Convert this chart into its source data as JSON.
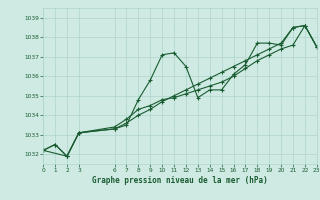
{
  "title": "Graphe pression niveau de la mer (hPa)",
  "bg_color": "#ceeae2",
  "grid_color": "#aed4cc",
  "line_color": "#1a5c32",
  "xlim": [
    0,
    23
  ],
  "ylim": [
    1031.5,
    1039.5
  ],
  "xticks": [
    0,
    1,
    2,
    3,
    6,
    7,
    8,
    9,
    10,
    11,
    12,
    13,
    14,
    15,
    16,
    17,
    18,
    19,
    20,
    21,
    22,
    23
  ],
  "yticks": [
    1032,
    1033,
    1034,
    1035,
    1036,
    1037,
    1038,
    1039
  ],
  "series1": [
    [
      0,
      1032.2
    ],
    [
      1,
      1032.5
    ],
    [
      2,
      1031.9
    ],
    [
      3,
      1033.1
    ],
    [
      6,
      1033.3
    ],
    [
      7,
      1033.5
    ],
    [
      8,
      1034.8
    ],
    [
      9,
      1035.8
    ],
    [
      10,
      1037.1
    ],
    [
      11,
      1037.2
    ],
    [
      12,
      1036.5
    ],
    [
      13,
      1034.9
    ],
    [
      14,
      1035.3
    ],
    [
      15,
      1035.3
    ],
    [
      16,
      1036.1
    ],
    [
      17,
      1036.6
    ],
    [
      18,
      1037.7
    ],
    [
      19,
      1037.7
    ],
    [
      20,
      1037.6
    ],
    [
      21,
      1038.5
    ],
    [
      22,
      1038.6
    ],
    [
      23,
      1037.5
    ]
  ],
  "series2": [
    [
      0,
      1032.2
    ],
    [
      1,
      1032.5
    ],
    [
      2,
      1031.9
    ],
    [
      3,
      1033.1
    ],
    [
      6,
      1033.4
    ],
    [
      7,
      1033.8
    ],
    [
      8,
      1034.3
    ],
    [
      9,
      1034.5
    ],
    [
      10,
      1034.8
    ],
    [
      11,
      1034.9
    ],
    [
      12,
      1035.1
    ],
    [
      13,
      1035.3
    ],
    [
      14,
      1035.5
    ],
    [
      15,
      1035.7
    ],
    [
      16,
      1036.0
    ],
    [
      17,
      1036.4
    ],
    [
      18,
      1036.8
    ],
    [
      19,
      1037.1
    ],
    [
      20,
      1037.4
    ],
    [
      21,
      1037.6
    ],
    [
      22,
      1038.6
    ],
    [
      23,
      1037.5
    ]
  ],
  "series3": [
    [
      0,
      1032.2
    ],
    [
      2,
      1031.9
    ],
    [
      3,
      1033.1
    ],
    [
      6,
      1033.3
    ],
    [
      7,
      1033.6
    ],
    [
      8,
      1034.0
    ],
    [
      9,
      1034.3
    ],
    [
      10,
      1034.7
    ],
    [
      11,
      1035.0
    ],
    [
      12,
      1035.3
    ],
    [
      13,
      1035.6
    ],
    [
      14,
      1035.9
    ],
    [
      15,
      1036.2
    ],
    [
      16,
      1036.5
    ],
    [
      17,
      1036.8
    ],
    [
      18,
      1037.1
    ],
    [
      19,
      1037.4
    ],
    [
      20,
      1037.7
    ],
    [
      21,
      1038.5
    ],
    [
      22,
      1038.6
    ],
    [
      23,
      1037.5
    ]
  ]
}
